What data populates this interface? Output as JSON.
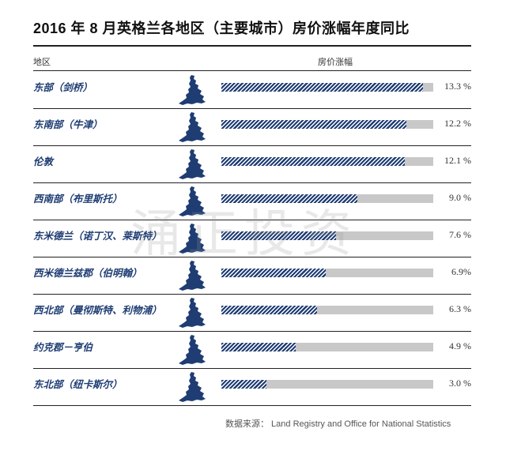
{
  "title": "2016 年 8 月英格兰各地区（主要城市）房价涨幅年度同比",
  "header": {
    "region_label": "地区",
    "value_label": "房价涨幅"
  },
  "watermark": "涌正投资",
  "source": "数据来源： Land Registry and Office for National Statistics",
  "colors": {
    "bar_fill": "#1f3d73",
    "bar_track": "#c8c8c8",
    "region_text": "#1f3d73"
  },
  "icons": {
    "row_icon": "england-map-icon"
  },
  "chart_data": {
    "type": "bar",
    "orientation": "horizontal",
    "title": "2016 年 8 月英格兰各地区（主要城市）房价涨幅年度同比",
    "categories": [
      "东部（剑桥）",
      "东南部（牛津）",
      "伦敦",
      "西南部（布里斯托）",
      "东米德兰（诺丁汉、莱斯特）",
      "西米德兰兹郡（伯明翰）",
      "西北部（曼彻斯特、利物浦）",
      "约克郡－亨伯",
      "东北部（纽卡斯尔）"
    ],
    "values": [
      13.3,
      12.2,
      12.1,
      9.0,
      7.6,
      6.9,
      6.3,
      4.9,
      3.0
    ],
    "value_labels": [
      "13.3 %",
      "12.2 %",
      "12.1 %",
      "9.0 %",
      "7.6 %",
      "6.9%",
      "6.3 %",
      "4.9 %",
      "3.0 %"
    ],
    "xlim": [
      0,
      14
    ],
    "grid": false,
    "legend": "none"
  }
}
